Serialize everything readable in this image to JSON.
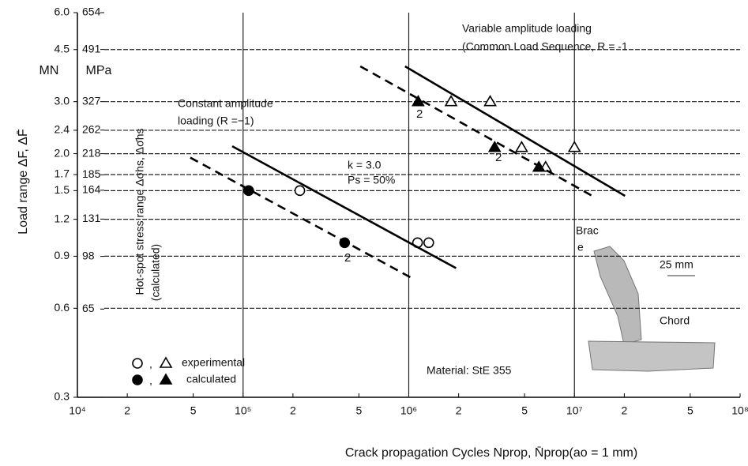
{
  "chart_data": {
    "type": "scatter",
    "x_label": "Crack propagation  Cycles  Nprop, N̄prop(ao = 1 mm)",
    "y_label": "Load range ΔF, ΔF̄",
    "y_unit": "MN",
    "y2_unit": "MPa",
    "y2_label": "Hot-spot stress range Δσhs, Δσ̄hs",
    "y2_label_note": "(calculated)",
    "xlog": true,
    "ylog": true,
    "grid": true,
    "xlim": [
      10000,
      100000000
    ],
    "xticks": [
      {
        "value": 10000,
        "label": "10⁴"
      },
      {
        "value": 20000,
        "label": "2"
      },
      {
        "value": 50000,
        "label": "5"
      },
      {
        "value": 100000,
        "label": "10⁵"
      },
      {
        "value": 200000,
        "label": "2"
      },
      {
        "value": 500000,
        "label": "5"
      },
      {
        "value": 1000000,
        "label": "10⁶"
      },
      {
        "value": 2000000,
        "label": "2"
      },
      {
        "value": 5000000,
        "label": "5"
      },
      {
        "value": 10000000,
        "label": "10⁷"
      },
      {
        "value": 20000000,
        "label": "2"
      },
      {
        "value": 50000000,
        "label": "5"
      },
      {
        "value": 100000000,
        "label": "10⁸"
      }
    ],
    "ylim": [
      0.3,
      6
    ],
    "yticks": [
      0.3,
      0.6,
      0.9,
      1.2,
      1.5,
      1.7,
      {
        "value": 2,
        "label": "2.0"
      },
      2.4,
      {
        "value": 3,
        "label": "3.0"
      },
      4.5,
      {
        "value": 6,
        "label": "6.0"
      }
    ],
    "y2lim": [
      32.7,
      654
    ],
    "y2ticks": [
      65,
      98,
      131,
      164,
      185,
      218,
      262,
      327,
      491,
      654
    ],
    "series": [
      {
        "marker": "circle",
        "filled": false,
        "color": "#000000",
        "x": [
          220000,
          1130000,
          1320000
        ],
        "values": [
          1.5,
          1.0,
          1.0
        ]
      },
      {
        "marker": "circle",
        "filled": true,
        "color": "#000000",
        "x": [
          108000,
          410000
        ],
        "values": [
          1.5,
          1.0
        ]
      },
      {
        "marker": "triangle",
        "filled": false,
        "color": "#000000",
        "x": [
          1800000,
          3100000,
          4800000,
          6700000,
          10000000
        ],
        "values": [
          3.0,
          3.0,
          2.1,
          1.8,
          2.1
        ]
      },
      {
        "marker": "triangle",
        "filled": true,
        "color": "#000000",
        "x": [
          1140000,
          3300000,
          6100000
        ],
        "values": [
          3.0,
          2.1,
          1.8
        ]
      },
      {
        "marker": "line",
        "dashed": false,
        "color": "#000000",
        "x": [
          86000,
          1930000
        ],
        "values": [
          2.12,
          0.82
        ]
      },
      {
        "marker": "line",
        "dashed": true,
        "color": "#000000",
        "x": [
          48000,
          1040000
        ],
        "values": [
          1.94,
          0.76
        ]
      },
      {
        "marker": "line",
        "dashed": false,
        "color": "#000000",
        "x": [
          950000,
          20200000
        ],
        "values": [
          3.95,
          1.44
        ]
      },
      {
        "marker": "line",
        "dashed": true,
        "color": "#000000",
        "x": [
          510000,
          13100000
        ],
        "values": [
          3.95,
          1.43
        ]
      }
    ],
    "legend": {
      "separator": ",",
      "items": [
        {
          "label": "experimental",
          "filled": false
        },
        {
          "label": "calculated",
          "filled": true
        }
      ]
    },
    "annotations": [
      "Variable amplitude loading",
      "(Common Load Sequence, R = -1",
      "Constant amplitude",
      "loading (R =−1)",
      "k =  3.0",
      "Ps = 50%",
      "2",
      "2",
      "2",
      "Brac",
      "e",
      "25 mm",
      "Chord",
      "Material: StE 355"
    ]
  }
}
